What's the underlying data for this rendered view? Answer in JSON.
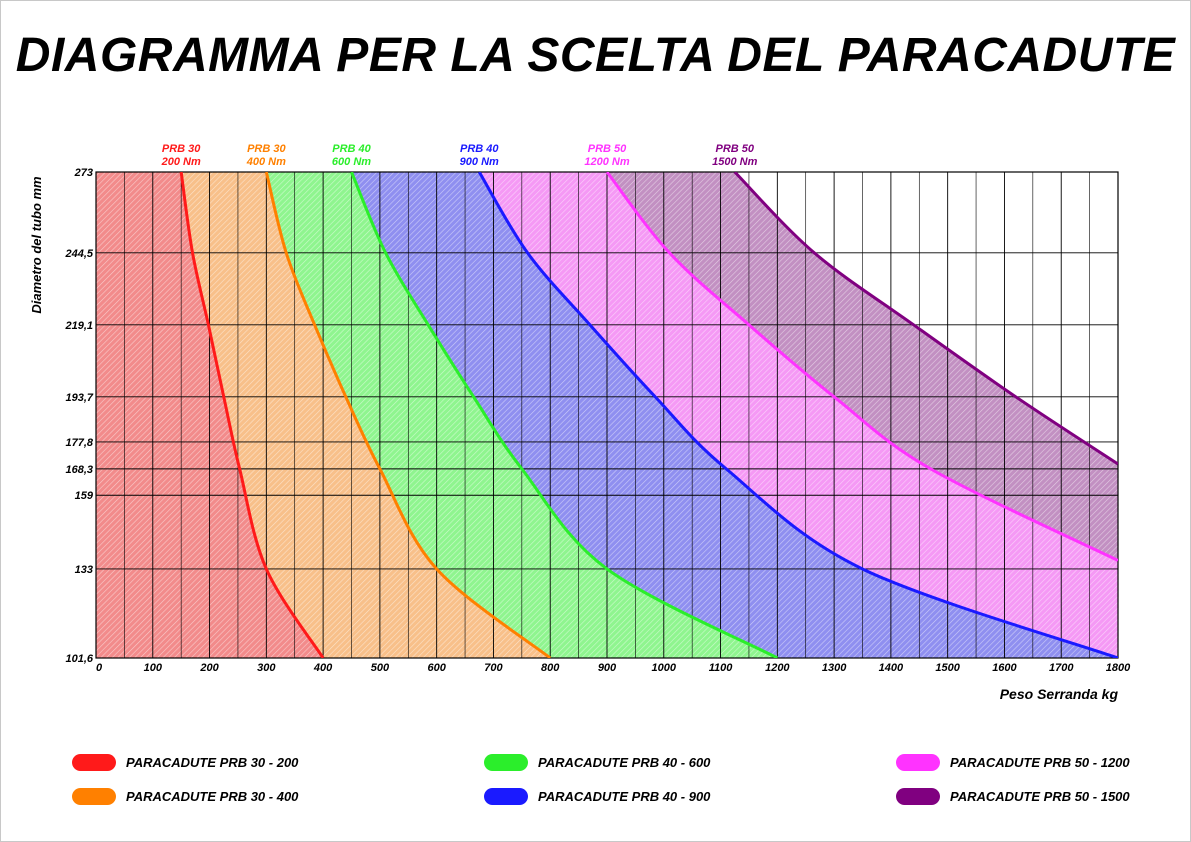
{
  "title": "DIAGRAMMA PER LA SCELTA DEL PARACADUTE",
  "chart_data": {
    "type": "area",
    "title": "DIAGRAMMA PER LA SCELTA DEL PARACADUTE",
    "xlabel": "Peso Serranda  kg",
    "ylabel": "Diametro del tubo  mm",
    "xlim": [
      0,
      1800
    ],
    "ylim": [
      101.6,
      273
    ],
    "x_ticks": [
      0,
      100,
      200,
      300,
      400,
      500,
      600,
      700,
      800,
      900,
      1000,
      1100,
      1200,
      1300,
      1400,
      1500,
      1600,
      1700,
      1800
    ],
    "y_ticks": [
      "101,6",
      "133",
      "159",
      "168,3",
      "177,8",
      "193,7",
      "219,1",
      "244,5",
      "273"
    ],
    "y_tick_values": [
      101.6,
      133,
      159,
      168.3,
      177.8,
      193.7,
      219.1,
      244.5,
      273
    ],
    "grid": true,
    "series": [
      {
        "name": "PARACADUTE  PRB 30 - 200",
        "top_label": [
          "PRB 30",
          "200 Nm"
        ],
        "color": "#ff1a1a",
        "fill": "#f28b8b",
        "x": [
          150,
          170,
          198,
          225,
          253,
          300,
          400
        ],
        "y": [
          273,
          244.5,
          219.1,
          193.7,
          168.3,
          133,
          101.6
        ]
      },
      {
        "name": "PARACADUTE  PRB 30 - 400",
        "top_label": [
          "PRB 30",
          "400 Nm"
        ],
        "color": "#ff8000",
        "fill": "#f8c08a",
        "x": [
          300,
          335,
          385,
          440,
          500,
          600,
          800
        ],
        "y": [
          273,
          244.5,
          219.1,
          193.7,
          168.3,
          133,
          101.6
        ]
      },
      {
        "name": "PARACADUTE  PRB 40 - 600",
        "top_label": [
          "PRB 40",
          "600 Nm"
        ],
        "color": "#2bee2b",
        "fill": "#8ff58f",
        "x": [
          450,
          510,
          585,
          665,
          750,
          900,
          1200
        ],
        "y": [
          273,
          244.5,
          219.1,
          193.7,
          168.3,
          133,
          101.6
        ]
      },
      {
        "name": "PARACADUTE  PRB 40 - 900",
        "top_label": [
          "PRB 40",
          "900 Nm"
        ],
        "color": "#1a1aff",
        "fill": "#8f8ff0",
        "x": [
          675,
          760,
          870,
          985,
          1110,
          1350,
          1800
        ],
        "y": [
          273,
          244.5,
          219.1,
          193.7,
          168.3,
          133,
          101.6
        ]
      },
      {
        "name": "PARACADUTE  PRB 50 - 1200",
        "top_label": [
          "PRB 50",
          "1200 Nm"
        ],
        "color": "#ff33ff",
        "fill": "#f599f5",
        "x": [
          900,
          1010,
          1150,
          1300,
          1470,
          1800
        ],
        "y": [
          273,
          244.5,
          219.1,
          193.7,
          168.3,
          136
        ]
      },
      {
        "name": "PARACADUTE  PRB 50 - 1500",
        "top_label": [
          "PRB 50",
          "1500 Nm"
        ],
        "color": "#800080",
        "fill": "#c290c2",
        "x": [
          1125,
          1265,
          1440,
          1620,
          1800
        ],
        "y": [
          273,
          244.5,
          219.1,
          193.7,
          170
        ]
      }
    ],
    "legend_placement": "bottom"
  }
}
